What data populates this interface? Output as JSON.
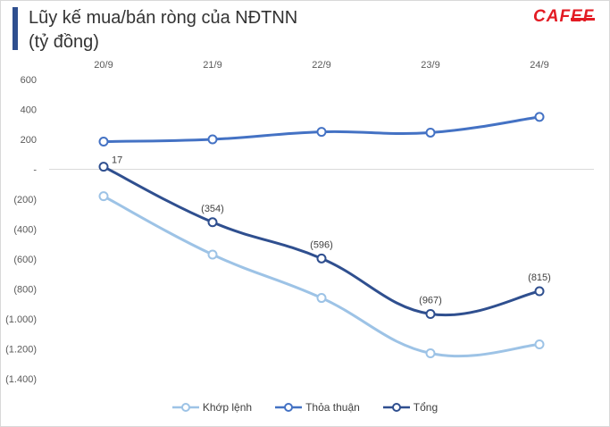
{
  "header": {
    "title": "Lũy kế mua/bán ròng của NĐTNN",
    "subtitle": "(tỷ đồng)",
    "logo_text": "CAFEF"
  },
  "colors": {
    "khop_lenh": "#9dc3e6",
    "thoa_thuan": "#4472c4",
    "tong": "#2f4f8f",
    "grid": "#d9d9d9",
    "brand": "#e31b23"
  },
  "chart_data": {
    "type": "line",
    "title": "Lũy kế mua/bán ròng của NĐTNN",
    "ylabel": "tỷ đồng",
    "categories": [
      "20/9",
      "21/9",
      "22/9",
      "23/9",
      "24/9"
    ],
    "ylim": [
      -1400,
      600
    ],
    "yticks": [
      600,
      400,
      200,
      0,
      -200,
      -400,
      -600,
      -800,
      -1000,
      -1200,
      -1400
    ],
    "ytick_labels": [
      "600",
      "400",
      "200",
      "-",
      "(200)",
      "(400)",
      "(600)",
      "(800)",
      "(1.000)",
      "(1.200)",
      "(1.400)"
    ],
    "x_axis_position": "top",
    "legend_position": "bottom",
    "series": [
      {
        "name": "Khớp lệnh",
        "key": "khop_lenh",
        "values": [
          -180,
          -570,
          -860,
          -1230,
          -1170
        ],
        "labels": null
      },
      {
        "name": "Thỏa thuận",
        "key": "thoa_thuan",
        "values": [
          185,
          200,
          250,
          245,
          350
        ],
        "labels": null
      },
      {
        "name": "Tổng",
        "key": "tong",
        "values": [
          17,
          -354,
          -596,
          -967,
          -815
        ],
        "labels": [
          "17",
          "(354)",
          "(596)",
          "(967)",
          "(815)"
        ]
      }
    ]
  }
}
